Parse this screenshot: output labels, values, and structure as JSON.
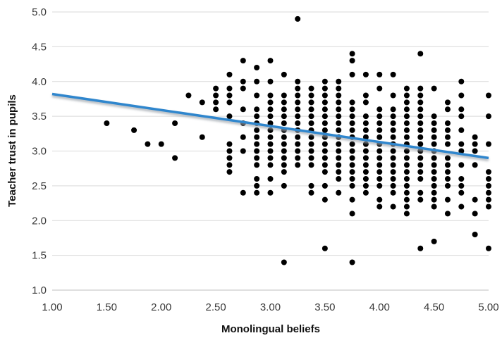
{
  "chart_data": {
    "type": "scatter",
    "title": "",
    "xlabel": "Monolingual beliefs",
    "ylabel": "Teacher trust in pupils",
    "xlim": [
      1.0,
      5.0
    ],
    "ylim": [
      1.0,
      5.0
    ],
    "xticks": [
      "1.00",
      "1.50",
      "2.00",
      "2.50",
      "3.00",
      "3.50",
      "4.00",
      "4.50",
      "5.00"
    ],
    "yticks": [
      "1.0",
      "1.5",
      "2.0",
      "2.5",
      "3.0",
      "3.5",
      "4.0",
      "4.5",
      "5.0"
    ],
    "grid": "horizontal",
    "legend": "none",
    "colors": {
      "points": "#000000",
      "trendline": "#2f86cd",
      "trendline_shadow": "#9fa6ad",
      "grid": "#d9d9d9",
      "axis": "#bfbfbf"
    },
    "trendline": {
      "x": [
        1.0,
        5.0
      ],
      "y": [
        3.82,
        2.9
      ]
    },
    "series": [
      {
        "points": [
          [
            1.5,
            3.4
          ],
          [
            1.75,
            3.3
          ],
          [
            1.875,
            3.1
          ],
          [
            2.0,
            3.1
          ],
          [
            2.125,
            3.4
          ],
          [
            2.125,
            2.9
          ],
          [
            2.25,
            3.8
          ],
          [
            2.375,
            3.7
          ],
          [
            2.375,
            3.2
          ],
          [
            2.5,
            3.9
          ],
          [
            2.5,
            3.8
          ],
          [
            2.5,
            3.7
          ],
          [
            2.5,
            3.6
          ],
          [
            2.625,
            4.1
          ],
          [
            2.625,
            3.9
          ],
          [
            2.625,
            3.8
          ],
          [
            2.625,
            3.7
          ],
          [
            2.625,
            3.5
          ],
          [
            2.625,
            3.1
          ],
          [
            2.625,
            3.0
          ],
          [
            2.625,
            2.9
          ],
          [
            2.625,
            2.8
          ],
          [
            2.625,
            2.7
          ],
          [
            2.75,
            4.3
          ],
          [
            2.75,
            4.0
          ],
          [
            2.75,
            3.9
          ],
          [
            2.75,
            3.6
          ],
          [
            2.75,
            3.4
          ],
          [
            2.75,
            3.2
          ],
          [
            2.75,
            3.0
          ],
          [
            2.75,
            2.4
          ],
          [
            2.875,
            4.2
          ],
          [
            2.875,
            4.0
          ],
          [
            2.875,
            3.8
          ],
          [
            2.875,
            3.6
          ],
          [
            2.875,
            3.5
          ],
          [
            2.875,
            3.4
          ],
          [
            2.875,
            3.3
          ],
          [
            2.875,
            3.2
          ],
          [
            2.875,
            3.1
          ],
          [
            2.875,
            3.0
          ],
          [
            2.875,
            2.9
          ],
          [
            2.875,
            2.8
          ],
          [
            2.875,
            2.6
          ],
          [
            2.875,
            2.5
          ],
          [
            2.875,
            2.4
          ],
          [
            3.0,
            4.3
          ],
          [
            3.0,
            4.0
          ],
          [
            3.0,
            3.8
          ],
          [
            3.0,
            3.7
          ],
          [
            3.0,
            3.6
          ],
          [
            3.0,
            3.5
          ],
          [
            3.0,
            3.4
          ],
          [
            3.0,
            3.3
          ],
          [
            3.0,
            3.2
          ],
          [
            3.0,
            3.1
          ],
          [
            3.0,
            3.0
          ],
          [
            3.0,
            2.9
          ],
          [
            3.0,
            2.8
          ],
          [
            3.0,
            2.6
          ],
          [
            3.0,
            2.4
          ],
          [
            3.125,
            4.1
          ],
          [
            3.125,
            3.8
          ],
          [
            3.125,
            3.7
          ],
          [
            3.125,
            3.6
          ],
          [
            3.125,
            3.5
          ],
          [
            3.125,
            3.4
          ],
          [
            3.125,
            3.3
          ],
          [
            3.125,
            3.2
          ],
          [
            3.125,
            3.1
          ],
          [
            3.125,
            3.0
          ],
          [
            3.125,
            2.9
          ],
          [
            3.125,
            2.8
          ],
          [
            3.125,
            2.7
          ],
          [
            3.125,
            2.5
          ],
          [
            3.125,
            1.4
          ],
          [
            3.25,
            4.9
          ],
          [
            3.25,
            4.0
          ],
          [
            3.25,
            3.9
          ],
          [
            3.25,
            3.8
          ],
          [
            3.25,
            3.7
          ],
          [
            3.25,
            3.6
          ],
          [
            3.25,
            3.5
          ],
          [
            3.25,
            3.4
          ],
          [
            3.25,
            3.3
          ],
          [
            3.25,
            3.2
          ],
          [
            3.25,
            3.1
          ],
          [
            3.25,
            3.0
          ],
          [
            3.25,
            2.9
          ],
          [
            3.25,
            2.8
          ],
          [
            3.375,
            3.9
          ],
          [
            3.375,
            3.8
          ],
          [
            3.375,
            3.7
          ],
          [
            3.375,
            3.6
          ],
          [
            3.375,
            3.5
          ],
          [
            3.375,
            3.4
          ],
          [
            3.375,
            3.3
          ],
          [
            3.375,
            3.2
          ],
          [
            3.375,
            3.1
          ],
          [
            3.375,
            3.0
          ],
          [
            3.375,
            2.9
          ],
          [
            3.375,
            2.8
          ],
          [
            3.375,
            2.5
          ],
          [
            3.375,
            2.4
          ],
          [
            3.5,
            4.0
          ],
          [
            3.5,
            3.9
          ],
          [
            3.5,
            3.8
          ],
          [
            3.5,
            3.7
          ],
          [
            3.5,
            3.6
          ],
          [
            3.5,
            3.5
          ],
          [
            3.5,
            3.4
          ],
          [
            3.5,
            3.3
          ],
          [
            3.5,
            3.2
          ],
          [
            3.5,
            3.1
          ],
          [
            3.5,
            3.0
          ],
          [
            3.5,
            2.9
          ],
          [
            3.5,
            2.8
          ],
          [
            3.5,
            2.7
          ],
          [
            3.5,
            2.5
          ],
          [
            3.5,
            2.3
          ],
          [
            3.5,
            1.6
          ],
          [
            3.625,
            4.0
          ],
          [
            3.625,
            3.9
          ],
          [
            3.625,
            3.8
          ],
          [
            3.625,
            3.7
          ],
          [
            3.625,
            3.6
          ],
          [
            3.625,
            3.5
          ],
          [
            3.625,
            3.4
          ],
          [
            3.625,
            3.3
          ],
          [
            3.625,
            3.2
          ],
          [
            3.625,
            3.1
          ],
          [
            3.625,
            3.0
          ],
          [
            3.625,
            2.9
          ],
          [
            3.625,
            2.8
          ],
          [
            3.625,
            2.7
          ],
          [
            3.625,
            2.6
          ],
          [
            3.625,
            2.4
          ],
          [
            3.75,
            4.4
          ],
          [
            3.75,
            4.3
          ],
          [
            3.75,
            4.1
          ],
          [
            3.75,
            3.7
          ],
          [
            3.75,
            3.6
          ],
          [
            3.75,
            3.5
          ],
          [
            3.75,
            3.4
          ],
          [
            3.75,
            3.3
          ],
          [
            3.75,
            3.2
          ],
          [
            3.75,
            3.1
          ],
          [
            3.75,
            3.0
          ],
          [
            3.75,
            2.9
          ],
          [
            3.75,
            2.8
          ],
          [
            3.75,
            2.7
          ],
          [
            3.75,
            2.6
          ],
          [
            3.75,
            2.5
          ],
          [
            3.75,
            2.3
          ],
          [
            3.75,
            2.1
          ],
          [
            3.75,
            1.4
          ],
          [
            3.875,
            4.1
          ],
          [
            3.875,
            3.8
          ],
          [
            3.875,
            3.7
          ],
          [
            3.875,
            3.5
          ],
          [
            3.875,
            3.4
          ],
          [
            3.875,
            3.3
          ],
          [
            3.875,
            3.2
          ],
          [
            3.875,
            3.1
          ],
          [
            3.875,
            3.0
          ],
          [
            3.875,
            2.9
          ],
          [
            3.875,
            2.8
          ],
          [
            3.875,
            2.7
          ],
          [
            3.875,
            2.6
          ],
          [
            3.875,
            2.5
          ],
          [
            3.875,
            2.4
          ],
          [
            4.0,
            4.1
          ],
          [
            4.0,
            3.9
          ],
          [
            4.0,
            3.6
          ],
          [
            4.0,
            3.5
          ],
          [
            4.0,
            3.4
          ],
          [
            4.0,
            3.3
          ],
          [
            4.0,
            3.2
          ],
          [
            4.0,
            3.1
          ],
          [
            4.0,
            3.0
          ],
          [
            4.0,
            2.9
          ],
          [
            4.0,
            2.8
          ],
          [
            4.0,
            2.7
          ],
          [
            4.0,
            2.6
          ],
          [
            4.0,
            2.5
          ],
          [
            4.0,
            2.3
          ],
          [
            4.0,
            2.2
          ],
          [
            4.125,
            4.1
          ],
          [
            4.125,
            3.8
          ],
          [
            4.125,
            3.6
          ],
          [
            4.125,
            3.5
          ],
          [
            4.125,
            3.4
          ],
          [
            4.125,
            3.3
          ],
          [
            4.125,
            3.2
          ],
          [
            4.125,
            3.1
          ],
          [
            4.125,
            3.0
          ],
          [
            4.125,
            2.9
          ],
          [
            4.125,
            2.8
          ],
          [
            4.125,
            2.7
          ],
          [
            4.125,
            2.6
          ],
          [
            4.125,
            2.5
          ],
          [
            4.125,
            2.4
          ],
          [
            4.125,
            2.2
          ],
          [
            4.25,
            3.9
          ],
          [
            4.25,
            3.8
          ],
          [
            4.25,
            3.7
          ],
          [
            4.25,
            3.6
          ],
          [
            4.25,
            3.5
          ],
          [
            4.25,
            3.4
          ],
          [
            4.25,
            3.3
          ],
          [
            4.25,
            3.2
          ],
          [
            4.25,
            3.1
          ],
          [
            4.25,
            3.0
          ],
          [
            4.25,
            2.9
          ],
          [
            4.25,
            2.8
          ],
          [
            4.25,
            2.7
          ],
          [
            4.25,
            2.6
          ],
          [
            4.25,
            2.5
          ],
          [
            4.25,
            2.4
          ],
          [
            4.25,
            2.3
          ],
          [
            4.25,
            2.2
          ],
          [
            4.25,
            2.1
          ],
          [
            4.375,
            4.4
          ],
          [
            4.375,
            3.9
          ],
          [
            4.375,
            3.8
          ],
          [
            4.375,
            3.7
          ],
          [
            4.375,
            3.6
          ],
          [
            4.375,
            3.5
          ],
          [
            4.375,
            3.4
          ],
          [
            4.375,
            3.3
          ],
          [
            4.375,
            3.2
          ],
          [
            4.375,
            3.1
          ],
          [
            4.375,
            3.0
          ],
          [
            4.375,
            2.9
          ],
          [
            4.375,
            2.8
          ],
          [
            4.375,
            2.7
          ],
          [
            4.375,
            2.6
          ],
          [
            4.375,
            2.4
          ],
          [
            4.375,
            2.3
          ],
          [
            4.375,
            1.6
          ],
          [
            4.5,
            3.9
          ],
          [
            4.5,
            3.5
          ],
          [
            4.5,
            3.4
          ],
          [
            4.5,
            3.3
          ],
          [
            4.5,
            3.2
          ],
          [
            4.5,
            3.1
          ],
          [
            4.5,
            3.0
          ],
          [
            4.5,
            2.9
          ],
          [
            4.5,
            2.8
          ],
          [
            4.5,
            2.7
          ],
          [
            4.5,
            2.6
          ],
          [
            4.5,
            2.5
          ],
          [
            4.5,
            2.4
          ],
          [
            4.5,
            2.3
          ],
          [
            4.5,
            2.2
          ],
          [
            4.5,
            1.7
          ],
          [
            4.625,
            3.7
          ],
          [
            4.625,
            3.6
          ],
          [
            4.625,
            3.4
          ],
          [
            4.625,
            3.3
          ],
          [
            4.625,
            3.2
          ],
          [
            4.625,
            3.1
          ],
          [
            4.625,
            2.9
          ],
          [
            4.625,
            2.8
          ],
          [
            4.625,
            2.7
          ],
          [
            4.625,
            2.6
          ],
          [
            4.625,
            2.5
          ],
          [
            4.625,
            2.3
          ],
          [
            4.625,
            2.1
          ],
          [
            4.75,
            4.0
          ],
          [
            4.75,
            3.8
          ],
          [
            4.75,
            3.6
          ],
          [
            4.75,
            3.5
          ],
          [
            4.75,
            3.3
          ],
          [
            4.75,
            3.1
          ],
          [
            4.75,
            3.0
          ],
          [
            4.75,
            2.8
          ],
          [
            4.75,
            2.6
          ],
          [
            4.75,
            2.5
          ],
          [
            4.75,
            2.4
          ],
          [
            4.75,
            2.2
          ],
          [
            4.875,
            3.2
          ],
          [
            4.875,
            3.1
          ],
          [
            4.875,
            3.0
          ],
          [
            4.875,
            2.8
          ],
          [
            4.875,
            2.3
          ],
          [
            4.875,
            2.1
          ],
          [
            4.875,
            1.8
          ],
          [
            5.0,
            3.8
          ],
          [
            5.0,
            3.5
          ],
          [
            5.0,
            3.1
          ],
          [
            5.0,
            2.7
          ],
          [
            5.0,
            2.6
          ],
          [
            5.0,
            2.5
          ],
          [
            5.0,
            2.4
          ],
          [
            5.0,
            2.3
          ],
          [
            5.0,
            2.2
          ],
          [
            5.0,
            1.6
          ]
        ]
      }
    ]
  }
}
